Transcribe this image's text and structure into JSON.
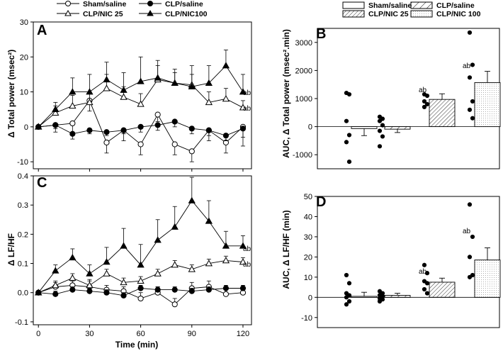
{
  "legend_left": [
    {
      "label": "Sham/saline",
      "marker": "open-circle"
    },
    {
      "label": "CLP/saline",
      "marker": "filled-circle"
    },
    {
      "label": "CLP/NIC 25",
      "marker": "open-triangle"
    },
    {
      "label": "CLP/NIC100",
      "marker": "filled-triangle"
    }
  ],
  "legend_right": [
    {
      "label": "Sham/saline",
      "pattern": "plain"
    },
    {
      "label": "CLP/saline",
      "pattern": "hatch-sparse"
    },
    {
      "label": "CLP/NIC 25",
      "pattern": "hatch-dense"
    },
    {
      "label": "CLP/NIC 100",
      "pattern": "dotted"
    }
  ],
  "chart_data": [
    {
      "panel": "A",
      "type": "line",
      "ylabel": "Δ Total power (msec²)",
      "xlabel": "",
      "xlim": [
        -3,
        125
      ],
      "ylim": [
        -12,
        30
      ],
      "xticks": [
        "0",
        "30",
        "60",
        "90",
        "120"
      ],
      "yticks": [
        "-10",
        "0",
        "10",
        "20",
        "30"
      ],
      "x": [
        0,
        10,
        20,
        30,
        40,
        50,
        60,
        70,
        80,
        90,
        100,
        110,
        120
      ],
      "series": [
        {
          "name": "Sham/saline",
          "marker": "open-circle",
          "values": [
            0,
            0.5,
            1,
            7.5,
            -4.5,
            -1,
            -5,
            3.5,
            -5,
            -7,
            -1,
            -4.5,
            0
          ],
          "err": [
            0,
            2,
            3,
            3,
            3,
            3,
            3,
            2,
            3,
            3,
            3,
            3,
            3
          ]
        },
        {
          "name": "CLP/saline",
          "marker": "filled-circle",
          "values": [
            0,
            0.5,
            -2,
            -1,
            -1.5,
            -1,
            0,
            0.5,
            1.5,
            -0.5,
            -1,
            -2.5,
            -0.5
          ],
          "err": [
            0,
            1,
            1.5,
            1,
            1,
            1,
            1.5,
            1.5,
            1.5,
            1.5,
            1.5,
            1.5,
            5
          ]
        },
        {
          "name": "CLP/NIC 25",
          "marker": "open-triangle",
          "values": [
            0,
            4,
            6,
            7,
            11,
            8.5,
            6.5,
            13.5,
            12.5,
            12,
            7,
            8,
            5.5
          ],
          "err": [
            0,
            2,
            3,
            3,
            4,
            3,
            3,
            4,
            3,
            3,
            3,
            3,
            2
          ]
        },
        {
          "name": "CLP/NIC100",
          "marker": "filled-triangle",
          "values": [
            0,
            5,
            10,
            10,
            13.5,
            10.5,
            13,
            14,
            12.5,
            11.5,
            12.5,
            17.5,
            10
          ],
          "err": [
            0,
            2,
            4,
            5,
            5,
            5,
            7,
            5,
            4,
            6,
            5,
            4.5,
            5
          ]
        }
      ],
      "annotations": [
        {
          "text": "ab"
        },
        {
          "text": "ab"
        }
      ]
    },
    {
      "panel": "B",
      "type": "bar",
      "ylabel": "AUC, Δ Total power (msec².min)",
      "ylim": [
        -1500,
        3500
      ],
      "yticks": [
        "-1000",
        "0",
        "1000",
        "2000",
        "3000"
      ],
      "categories": [
        "Sham/saline",
        "CLP/saline",
        "CLP/NIC 25",
        "CLP/NIC 100"
      ],
      "values": [
        -70,
        -90,
        970,
        1570
      ],
      "err": [
        250,
        120,
        200,
        400
      ],
      "points": [
        [
          1200,
          1150,
          200,
          -300,
          -550,
          -1250
        ],
        [
          350,
          280,
          200,
          50,
          -150,
          -350,
          -700
        ],
        [
          1150,
          1100,
          900,
          800,
          700
        ],
        [
          3350,
          2200,
          1750,
          900,
          600,
          300
        ]
      ],
      "annotations": [
        {
          "text": "ab"
        },
        {
          "text": "ab"
        }
      ]
    },
    {
      "panel": "C",
      "type": "line",
      "ylabel": "Δ LF/HF",
      "xlabel": "Time (min)",
      "xlim": [
        -3,
        125
      ],
      "ylim": [
        -0.11,
        0.4
      ],
      "xticks": [
        "0",
        "30",
        "60",
        "90",
        "120"
      ],
      "yticks": [
        "-0.1",
        "0.0",
        "0.1",
        "0.2",
        "0.3",
        "0.4"
      ],
      "x": [
        0,
        10,
        20,
        30,
        40,
        50,
        60,
        70,
        80,
        90,
        100,
        110,
        120
      ],
      "series": [
        {
          "name": "Sham/saline",
          "marker": "open-circle",
          "values": [
            0,
            0.02,
            0.025,
            0.02,
            0.01,
            0.005,
            -0.02,
            0,
            -0.04,
            0.015,
            0.02,
            -0.005,
            0
          ],
          "err": [
            0,
            0.015,
            0.015,
            0.02,
            0.015,
            0.015,
            0.02,
            0.02,
            0.02,
            0.02,
            0.02,
            0.02,
            0.015
          ]
        },
        {
          "name": "CLP/saline",
          "marker": "filled-circle",
          "values": [
            0,
            -0.005,
            0.01,
            0.005,
            0,
            -0.01,
            0.015,
            0.01,
            0.01,
            0.005,
            0.01,
            0.015,
            0.015
          ],
          "err": [
            0,
            0.01,
            0.01,
            0.01,
            0.01,
            0.01,
            0.01,
            0.01,
            0.01,
            0.01,
            0.01,
            0.01,
            0.01
          ]
        },
        {
          "name": "CLP/NIC 25",
          "marker": "open-triangle",
          "values": [
            0,
            0.025,
            0.05,
            0.025,
            0.065,
            0.035,
            0.04,
            0.065,
            0.095,
            0.08,
            0.1,
            0.11,
            0.105
          ],
          "err": [
            0,
            0.015,
            0.015,
            0.02,
            0.015,
            0.015,
            0.015,
            0.015,
            0.015,
            0.015,
            0.015,
            0.015,
            0.015
          ]
        },
        {
          "name": "CLP/NIC100",
          "marker": "filled-triangle",
          "values": [
            0,
            0.075,
            0.12,
            0.065,
            0.105,
            0.16,
            0.095,
            0.18,
            0.225,
            0.315,
            0.245,
            0.16,
            0.16
          ],
          "err": [
            0,
            0.02,
            0.03,
            0.03,
            0.05,
            0.06,
            0.07,
            0.07,
            0.07,
            0.08,
            0.07,
            0.05,
            0.035
          ]
        }
      ],
      "annotations": [
        {
          "text": "ab"
        },
        {
          "text": "ab"
        }
      ]
    },
    {
      "panel": "D",
      "type": "bar",
      "ylabel": "AUC, Δ LF/HF (min)",
      "ylim": [
        -15,
        50
      ],
      "yticks": [
        "-10",
        "0",
        "10",
        "20",
        "30",
        "40",
        "50"
      ],
      "categories": [
        "Sham/saline",
        "CLP/saline",
        "CLP/NIC 25",
        "CLP/NIC 100"
      ],
      "values": [
        0.5,
        1,
        7.5,
        18.5
      ],
      "err": [
        2,
        1,
        2,
        6
      ],
      "points": [
        [
          11,
          7,
          2,
          1,
          0,
          -2,
          -3.5
        ],
        [
          3,
          2,
          1,
          0.5,
          -0.5,
          -1,
          -2
        ],
        [
          16,
          12,
          8,
          7,
          4,
          2
        ],
        [
          46,
          30,
          20,
          11,
          10
        ]
      ],
      "annotations": [
        {
          "text": "ab"
        },
        {
          "text": "ab"
        }
      ]
    }
  ]
}
